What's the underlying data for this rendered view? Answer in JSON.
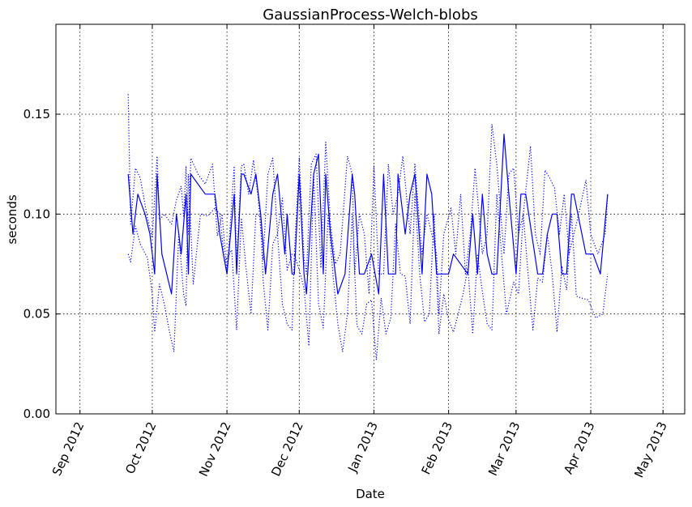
{
  "chart_data": {
    "type": "line",
    "title": "GaussianProcess-Welch-blobs",
    "xlabel": "Date",
    "ylabel": "seconds",
    "x_ticks": [
      "Sep 2012",
      "Oct 2012",
      "Nov 2012",
      "Dec 2012",
      "Jan 2013",
      "Feb 2013",
      "Mar 2013",
      "Apr 2013",
      "May 2013"
    ],
    "y_ticks": [
      "0.00",
      "0.05",
      "0.10",
      "0.15"
    ],
    "xlim": [
      "2012-08-22",
      "2013-05-10"
    ],
    "ylim": [
      0.0,
      0.195
    ],
    "grid": true,
    "colors": {
      "series": "#0000ff"
    },
    "series": [
      {
        "style": "solid",
        "x": [
          "2012-09-21",
          "2012-09-23",
          "2012-09-25",
          "2012-09-28",
          "2012-09-30",
          "2012-10-02",
          "2012-10-03",
          "2012-10-05",
          "2012-10-09",
          "2012-10-11",
          "2012-10-13",
          "2012-10-15",
          "2012-10-16",
          "2012-10-17",
          "2012-10-23",
          "2012-10-27",
          "2012-10-29",
          "2012-11-01",
          "2012-11-04",
          "2012-11-05",
          "2012-11-07",
          "2012-11-08",
          "2012-11-11",
          "2012-11-13",
          "2012-11-15",
          "2012-11-17",
          "2012-11-20",
          "2012-11-22",
          "2012-11-25",
          "2012-11-26",
          "2012-11-28",
          "2012-11-29",
          "2012-12-01",
          "2012-12-03",
          "2012-12-04",
          "2012-12-07",
          "2012-12-09",
          "2012-12-11",
          "2012-12-12",
          "2012-12-14",
          "2012-12-17",
          "2012-12-20",
          "2012-12-23",
          "2012-12-24",
          "2012-12-26",
          "2012-12-28",
          "2012-12-31",
          "2013-01-03",
          "2013-01-05",
          "2013-01-07",
          "2013-01-10",
          "2013-01-11",
          "2013-01-14",
          "2013-01-16",
          "2013-01-18",
          "2013-01-21",
          "2013-01-23",
          "2013-01-25",
          "2013-01-27",
          "2013-01-28",
          "2013-01-30",
          "2013-02-01",
          "2013-02-03",
          "2013-02-09",
          "2013-02-11",
          "2013-02-13",
          "2013-02-15",
          "2013-02-17",
          "2013-02-19",
          "2013-02-21",
          "2013-02-24",
          "2013-02-26",
          "2013-03-01",
          "2013-03-03",
          "2013-03-05",
          "2013-03-10",
          "2013-03-12",
          "2013-03-14",
          "2013-03-16",
          "2013-03-18",
          "2013-03-20",
          "2013-03-22",
          "2013-03-24",
          "2013-03-25",
          "2013-03-30",
          "2013-04-02",
          "2013-04-05",
          "2013-04-08"
        ],
        "values": [
          0.12,
          0.09,
          0.11,
          0.1,
          0.09,
          0.07,
          0.12,
          0.08,
          0.06,
          0.1,
          0.08,
          0.11,
          0.07,
          0.12,
          0.11,
          0.11,
          0.09,
          0.07,
          0.11,
          0.07,
          0.12,
          0.12,
          0.11,
          0.12,
          0.1,
          0.07,
          0.11,
          0.12,
          0.08,
          0.1,
          0.07,
          0.07,
          0.12,
          0.07,
          0.06,
          0.12,
          0.13,
          0.07,
          0.12,
          0.09,
          0.06,
          0.07,
          0.12,
          0.11,
          0.07,
          0.07,
          0.08,
          0.06,
          0.12,
          0.07,
          0.07,
          0.12,
          0.09,
          0.11,
          0.12,
          0.07,
          0.12,
          0.11,
          0.07,
          0.07,
          0.07,
          0.07,
          0.08,
          0.07,
          0.1,
          0.07,
          0.11,
          0.08,
          0.07,
          0.07,
          0.14,
          0.11,
          0.07,
          0.11,
          0.11,
          0.07,
          0.07,
          0.09,
          0.1,
          0.1,
          0.07,
          0.07,
          0.11,
          0.11,
          0.08,
          0.08,
          0.07,
          0.11
        ]
      },
      {
        "style": "dotted",
        "x": [
          "2012-09-21",
          "2012-09-22",
          "2012-09-24",
          "2012-09-26",
          "2012-09-29",
          "2012-10-01",
          "2012-10-03",
          "2012-10-04",
          "2012-10-06",
          "2012-10-09",
          "2012-10-11",
          "2012-10-13",
          "2012-10-14",
          "2012-10-15",
          "2012-10-16",
          "2012-10-17",
          "2012-10-20",
          "2012-10-23",
          "2012-10-26",
          "2012-10-28",
          "2012-10-30",
          "2012-11-01",
          "2012-11-04",
          "2012-11-05",
          "2012-11-07",
          "2012-11-08",
          "2012-11-10",
          "2012-11-12",
          "2012-11-14",
          "2012-11-16",
          "2012-11-18",
          "2012-11-20",
          "2012-11-22",
          "2012-11-24",
          "2012-11-26",
          "2012-11-28",
          "2012-11-29",
          "2012-12-01",
          "2012-12-03",
          "2012-12-04",
          "2012-12-06",
          "2012-12-08",
          "2012-12-10",
          "2012-12-12",
          "2012-12-14",
          "2012-12-16",
          "2012-12-18",
          "2012-12-21",
          "2012-12-23",
          "2012-12-24",
          "2012-12-26",
          "2012-12-28",
          "2012-12-30",
          "2013-01-01",
          "2013-01-03",
          "2013-01-05",
          "2013-01-07",
          "2013-01-09",
          "2013-01-11",
          "2013-01-13",
          "2013-01-16",
          "2013-01-18",
          "2013-01-21",
          "2013-01-23",
          "2013-01-25",
          "2013-01-27",
          "2013-01-28",
          "2013-01-30",
          "2013-02-02",
          "2013-02-04",
          "2013-02-06",
          "2013-02-08",
          "2013-02-10",
          "2013-02-12",
          "2013-02-15",
          "2013-02-17",
          "2013-02-19",
          "2013-02-21",
          "2013-02-24",
          "2013-02-26",
          "2013-02-28",
          "2013-03-02",
          "2013-03-04",
          "2013-03-07",
          "2013-03-09",
          "2013-03-11",
          "2013-03-13",
          "2013-03-15",
          "2013-03-17",
          "2013-03-19",
          "2013-03-21",
          "2013-03-23",
          "2013-03-25",
          "2013-03-27",
          "2013-03-30",
          "2013-04-01",
          "2013-04-04",
          "2013-04-07",
          "2013-04-08"
        ],
        "values": [
          0.16,
          0.095,
          0.123,
          0.118,
          0.098,
          0.088,
          0.129,
          0.097,
          0.1,
          0.095,
          0.107,
          0.114,
          0.099,
          0.124,
          0.09,
          0.128,
          0.12,
          0.115,
          0.125,
          0.089,
          0.1,
          0.07,
          0.124,
          0.075,
          0.124,
          0.125,
          0.11,
          0.127,
          0.108,
          0.077,
          0.12,
          0.128,
          0.09,
          0.108,
          0.072,
          0.08,
          0.08,
          0.128,
          0.078,
          0.07,
          0.125,
          0.13,
          0.073,
          0.136,
          0.095,
          0.075,
          0.08,
          0.129,
          0.12,
          0.07,
          0.1,
          0.09,
          0.06,
          0.124,
          0.07,
          0.07,
          0.125,
          0.1,
          0.11,
          0.129,
          0.09,
          0.125,
          0.08,
          0.1,
          0.09,
          0.08,
          0.05,
          0.09,
          0.103,
          0.08,
          0.11,
          0.07,
          0.09,
          0.123,
          0.08,
          0.09,
          0.145,
          0.125,
          0.08,
          0.12,
          0.123,
          0.09,
          0.1,
          0.134,
          0.09,
          0.08,
          0.122,
          0.118,
          0.113,
          0.09,
          0.11,
          0.08,
          0.09,
          0.1,
          0.117,
          0.09,
          0.08,
          0.09,
          0.11
        ]
      },
      {
        "style": "dotted",
        "x": [
          "2012-09-21",
          "2012-09-22",
          "2012-09-24",
          "2012-09-26",
          "2012-09-29",
          "2012-10-01",
          "2012-10-02",
          "2012-10-04",
          "2012-10-06",
          "2012-10-08",
          "2012-10-10",
          "2012-10-12",
          "2012-10-14",
          "2012-10-15",
          "2012-10-16",
          "2012-10-18",
          "2012-10-21",
          "2012-10-24",
          "2012-10-27",
          "2012-10-29",
          "2012-10-31",
          "2012-11-01",
          "2012-11-03",
          "2012-11-05",
          "2012-11-07",
          "2012-11-09",
          "2012-11-11",
          "2012-11-13",
          "2012-11-15",
          "2012-11-16",
          "2012-11-18",
          "2012-11-20",
          "2012-11-22",
          "2012-11-24",
          "2012-11-26",
          "2012-11-28",
          "2012-11-29",
          "2012-12-01",
          "2012-12-03",
          "2012-12-05",
          "2012-12-07",
          "2012-12-09",
          "2012-12-11",
          "2012-12-13",
          "2012-12-15",
          "2012-12-17",
          "2012-12-19",
          "2012-12-21",
          "2012-12-23",
          "2012-12-25",
          "2012-12-27",
          "2012-12-29",
          "2012-12-31",
          "2013-01-02",
          "2013-01-04",
          "2013-01-06",
          "2013-01-08",
          "2013-01-10",
          "2013-01-12",
          "2013-01-14",
          "2013-01-16",
          "2013-01-18",
          "2013-01-20",
          "2013-01-22",
          "2013-01-24",
          "2013-01-26",
          "2013-01-28",
          "2013-01-30",
          "2013-02-01",
          "2013-02-03",
          "2013-02-05",
          "2013-02-07",
          "2013-02-09",
          "2013-02-11",
          "2013-02-13",
          "2013-02-15",
          "2013-02-17",
          "2013-02-19",
          "2013-02-21",
          "2013-02-23",
          "2013-02-25",
          "2013-02-28",
          "2013-03-02",
          "2013-03-04",
          "2013-03-06",
          "2013-03-08",
          "2013-03-10",
          "2013-03-12",
          "2013-03-14",
          "2013-03-16",
          "2013-03-18",
          "2013-03-20",
          "2013-03-22",
          "2013-03-24",
          "2013-03-26",
          "2013-03-28",
          "2013-03-31",
          "2013-04-03",
          "2013-04-06",
          "2013-04-08"
        ],
        "values": [
          0.08,
          0.076,
          0.094,
          0.085,
          0.078,
          0.06,
          0.041,
          0.065,
          0.055,
          0.042,
          0.031,
          0.09,
          0.06,
          0.054,
          0.12,
          0.065,
          0.1,
          0.099,
          0.103,
          0.1,
          0.076,
          0.078,
          0.082,
          0.042,
          0.098,
          0.072,
          0.05,
          0.1,
          0.099,
          0.067,
          0.042,
          0.085,
          0.09,
          0.055,
          0.045,
          0.042,
          0.08,
          0.072,
          0.063,
          0.034,
          0.12,
          0.055,
          0.043,
          0.1,
          0.07,
          0.045,
          0.031,
          0.05,
          0.1,
          0.044,
          0.04,
          0.055,
          0.057,
          0.027,
          0.058,
          0.04,
          0.048,
          0.095,
          0.07,
          0.069,
          0.045,
          0.11,
          0.07,
          0.046,
          0.05,
          0.1,
          0.04,
          0.06,
          0.047,
          0.041,
          0.05,
          0.06,
          0.073,
          0.04,
          0.08,
          0.061,
          0.045,
          0.042,
          0.11,
          0.08,
          0.05,
          0.066,
          0.06,
          0.1,
          0.07,
          0.042,
          0.068,
          0.066,
          0.09,
          0.07,
          0.041,
          0.074,
          0.062,
          0.1,
          0.059,
          0.058,
          0.057,
          0.048,
          0.05,
          0.07
        ]
      }
    ]
  }
}
